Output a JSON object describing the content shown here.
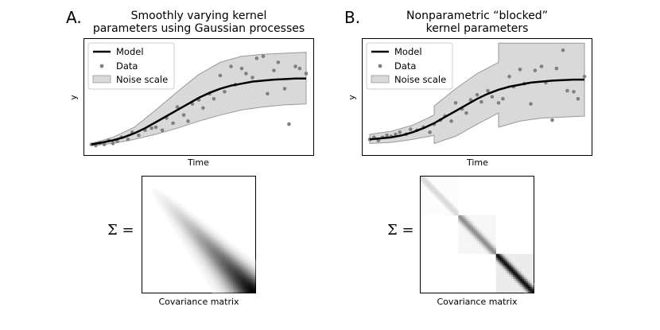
{
  "panels": {
    "a": {
      "letter": "A.",
      "title_line1": "Smoothly varying kernel",
      "title_line2": "parameters using Gaussian processes",
      "xlabel": "Time",
      "ylabel": "y",
      "cov_label": "Covariance matrix",
      "sigma_label": "Σ ="
    },
    "b": {
      "letter": "B.",
      "title_line1": "Nonparametric “blocked”",
      "title_line2": "kernel parameters",
      "xlabel": "Time",
      "ylabel": "y",
      "cov_label": "Covariance matrix",
      "sigma_label": "Σ ="
    }
  },
  "legend": {
    "model": "Model",
    "data": "Data",
    "noise": "Noise scale"
  },
  "colors": {
    "model": "#000000",
    "data": "#808080",
    "band": "#d9d9d9",
    "band_edge": "#999999"
  },
  "chart_data": [
    {
      "type": "scatter",
      "panel": "A",
      "xlabel": "Time",
      "ylabel": "y",
      "series": [
        {
          "name": "Model",
          "kind": "line",
          "x": [
            0,
            0.05,
            0.1,
            0.15,
            0.2,
            0.25,
            0.3,
            0.35,
            0.4,
            0.45,
            0.5,
            0.55,
            0.6,
            0.65,
            0.7,
            0.75,
            0.8,
            0.85,
            0.9,
            0.95,
            1.0
          ],
          "y": [
            0.05,
            0.07,
            0.09,
            0.12,
            0.16,
            0.21,
            0.27,
            0.33,
            0.39,
            0.45,
            0.51,
            0.56,
            0.6,
            0.63,
            0.65,
            0.67,
            0.68,
            0.69,
            0.695,
            0.7,
            0.7
          ]
        },
        {
          "name": "Data",
          "kind": "points",
          "x": [
            0.0,
            0.02,
            0.04,
            0.06,
            0.08,
            0.1,
            0.12,
            0.14,
            0.17,
            0.19,
            0.22,
            0.25,
            0.28,
            0.3,
            0.33,
            0.35,
            0.38,
            0.4,
            0.43,
            0.45,
            0.47,
            0.5,
            0.52,
            0.55,
            0.57,
            0.6,
            0.62,
            0.65,
            0.67,
            0.7,
            0.72,
            0.75,
            0.77,
            0.8,
            0.82,
            0.85,
            0.87,
            0.9,
            0.92,
            0.95,
            0.97,
            1.0
          ],
          "y": [
            0.05,
            0.04,
            0.06,
            0.05,
            0.09,
            0.06,
            0.08,
            0.12,
            0.1,
            0.17,
            0.14,
            0.19,
            0.21,
            0.22,
            0.19,
            0.31,
            0.26,
            0.42,
            0.34,
            0.28,
            0.45,
            0.49,
            0.41,
            0.55,
            0.5,
            0.73,
            0.57,
            0.82,
            0.64,
            0.8,
            0.75,
            0.71,
            0.9,
            0.92,
            0.55,
            0.78,
            0.86,
            0.6,
            0.25,
            0.82,
            0.8,
            0.75
          ]
        },
        {
          "name": "Noise scale",
          "kind": "band",
          "x": [
            0,
            0.1,
            0.2,
            0.3,
            0.4,
            0.5,
            0.6,
            0.7,
            0.8,
            0.9,
            1.0
          ],
          "lower": [
            0.04,
            0.06,
            0.1,
            0.15,
            0.21,
            0.28,
            0.34,
            0.39,
            0.42,
            0.44,
            0.45
          ],
          "upper": [
            0.06,
            0.12,
            0.22,
            0.39,
            0.57,
            0.74,
            0.86,
            0.92,
            0.94,
            0.95,
            0.96
          ]
        }
      ]
    },
    {
      "type": "scatter",
      "panel": "B",
      "xlabel": "Time",
      "ylabel": "y",
      "series": [
        {
          "name": "Model",
          "kind": "line",
          "x": [
            0,
            0.05,
            0.1,
            0.15,
            0.2,
            0.25,
            0.3,
            0.35,
            0.4,
            0.45,
            0.5,
            0.55,
            0.6,
            0.65,
            0.7,
            0.75,
            0.8,
            0.85,
            0.9,
            0.95,
            1.0
          ],
          "y": [
            0.1,
            0.11,
            0.12,
            0.14,
            0.17,
            0.21,
            0.26,
            0.32,
            0.38,
            0.44,
            0.5,
            0.55,
            0.59,
            0.62,
            0.64,
            0.66,
            0.67,
            0.68,
            0.685,
            0.69,
            0.69
          ]
        },
        {
          "name": "Data",
          "kind": "points",
          "x": [
            0.0,
            0.02,
            0.04,
            0.06,
            0.08,
            0.1,
            0.12,
            0.14,
            0.17,
            0.19,
            0.22,
            0.25,
            0.28,
            0.3,
            0.33,
            0.35,
            0.38,
            0.4,
            0.43,
            0.45,
            0.47,
            0.5,
            0.52,
            0.55,
            0.57,
            0.6,
            0.62,
            0.65,
            0.67,
            0.7,
            0.72,
            0.75,
            0.77,
            0.8,
            0.82,
            0.85,
            0.87,
            0.9,
            0.92,
            0.95,
            0.97,
            1.0
          ],
          "y": [
            0.1,
            0.12,
            0.09,
            0.12,
            0.14,
            0.13,
            0.15,
            0.17,
            0.15,
            0.2,
            0.19,
            0.22,
            0.17,
            0.25,
            0.29,
            0.33,
            0.28,
            0.46,
            0.4,
            0.36,
            0.49,
            0.54,
            0.47,
            0.58,
            0.52,
            0.46,
            0.5,
            0.72,
            0.62,
            0.79,
            0.65,
            0.45,
            0.78,
            0.82,
            0.66,
            0.29,
            0.8,
            0.98,
            0.58,
            0.57,
            0.5,
            0.72
          ]
        },
        {
          "name": "Noise scale",
          "kind": "band",
          "x": [
            0,
            0.1,
            0.2,
            0.3,
            0.3,
            0.4,
            0.5,
            0.6,
            0.6,
            0.7,
            0.8,
            0.9,
            1.0
          ],
          "lower": [
            0.06,
            0.07,
            0.1,
            0.14,
            0.06,
            0.13,
            0.25,
            0.36,
            0.22,
            0.28,
            0.31,
            0.32,
            0.33
          ],
          "upper": [
            0.15,
            0.18,
            0.24,
            0.34,
            0.43,
            0.6,
            0.75,
            0.86,
            1.05,
            1.05,
            1.05,
            1.05,
            1.05
          ]
        }
      ]
    },
    {
      "type": "heatmap",
      "panel": "A",
      "label": "Covariance matrix",
      "description_values": "Diagonal band whose darkness grows from light (top-left) to near-black (bottom-right)",
      "blocks": 1
    },
    {
      "type": "heatmap",
      "panel": "B",
      "label": "Covariance matrix",
      "blocks": 3,
      "block_intensity": [
        0.15,
        0.45,
        0.95
      ]
    }
  ]
}
